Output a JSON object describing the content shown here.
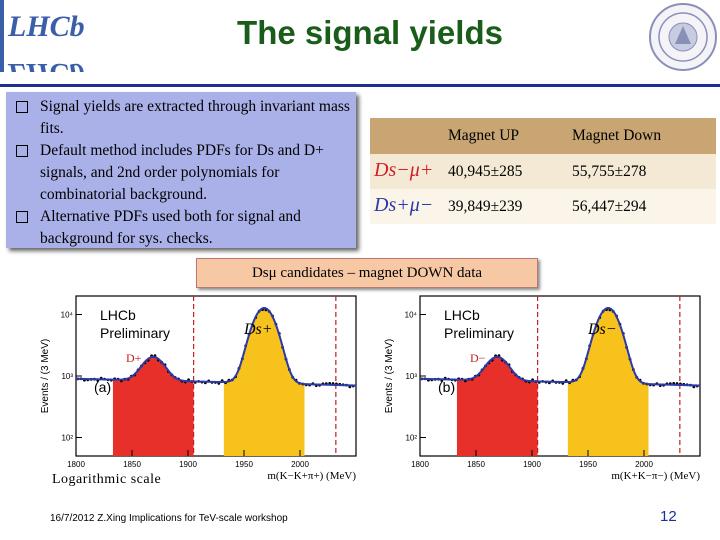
{
  "slide": {
    "title": "The signal yields",
    "bullets": [
      "Signal yields are extracted through invariant mass fits.",
      "Default method includes PDFs for Ds and D+ signals, and 2nd order polynomials for combinatorial background.",
      "Alternative PDFs used both for signal and background for sys. checks."
    ],
    "caption": "Dsμ candidates – magnet DOWN data",
    "log_scale_label": "Logarithmic scale",
    "footer": "16/7/2012 Z.Xing Implications for TeV-scale workshop",
    "page_number": "12"
  },
  "table": {
    "headers": [
      "",
      "Magnet UP",
      "Magnet Down"
    ],
    "rows": [
      {
        "channel": "Ds−μ+",
        "up": "40,945±285",
        "down": "55,755±278"
      },
      {
        "channel": "Ds+μ−",
        "up": "39,849±239",
        "down": "56,447±294"
      }
    ]
  },
  "chart_data": [
    {
      "type": "histogram",
      "panel_label": "(a)",
      "experiment_label": "LHCb",
      "status_label": "Preliminary",
      "peak_labels": [
        "D+",
        "Ds+"
      ],
      "xlabel": "m(K−K+π+) (MeV)",
      "ylabel": "Events / (3 MeV)",
      "xlim": [
        1800,
        2050
      ],
      "ylim": [
        50,
        20000
      ],
      "log_y": true,
      "x_ticks": [
        1800,
        1850,
        1900,
        1950,
        2000
      ],
      "y_ticks": [
        "10²",
        "10³",
        "10⁴"
      ],
      "peaks": [
        {
          "name": "D+",
          "mean": 1869,
          "height": 1200,
          "color": "#e8302a"
        },
        {
          "name": "Ds+",
          "mean": 1968,
          "height": 12000,
          "color": "#f7c21b"
        }
      ],
      "background_level": [
        900,
        700
      ],
      "signal_window_lines": [
        1905,
        2032
      ]
    },
    {
      "type": "histogram",
      "panel_label": "(b)",
      "experiment_label": "LHCb",
      "status_label": "Preliminary",
      "peak_labels": [
        "D−",
        "Ds−"
      ],
      "xlabel": "m(K+K−π−) (MeV)",
      "ylabel": "Events / (3 MeV)",
      "xlim": [
        1800,
        2050
      ],
      "ylim": [
        50,
        20000
      ],
      "log_y": true,
      "x_ticks": [
        1800,
        1850,
        1900,
        1950,
        2000
      ],
      "y_ticks": [
        "10²",
        "10³",
        "10⁴"
      ],
      "peaks": [
        {
          "name": "D−",
          "mean": 1869,
          "height": 1200,
          "color": "#e8302a"
        },
        {
          "name": "Ds−",
          "mean": 1968,
          "height": 12000,
          "color": "#f7c21b"
        }
      ],
      "background_level": [
        900,
        700
      ],
      "signal_window_lines": [
        1905,
        2032
      ]
    }
  ]
}
